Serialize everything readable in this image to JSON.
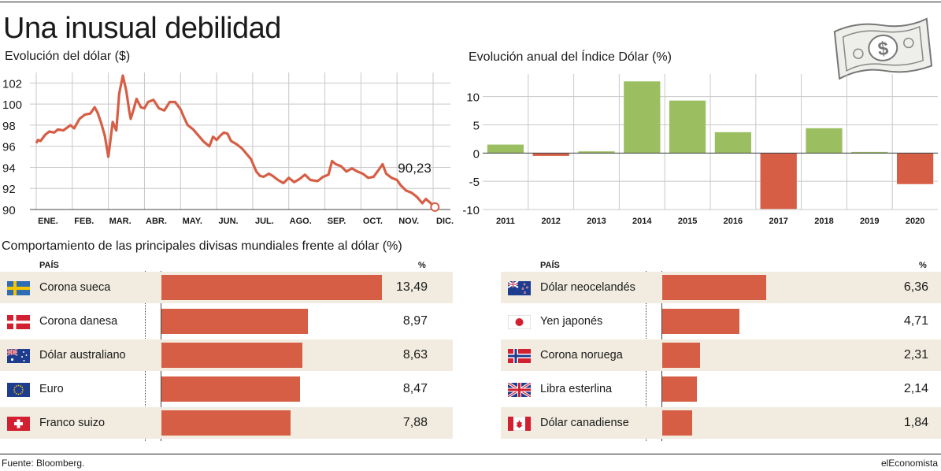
{
  "title": "Una inusual debilidad",
  "source": "Fuente: Bloomberg.",
  "brand": "elEconomista",
  "icons": {
    "money": "dollar-bill-icon"
  },
  "colors": {
    "line": "#d65e45",
    "negative": "#d65e45",
    "positive": "#9bbf60",
    "shade": "#f1ecdf"
  },
  "chart_data": [
    {
      "type": "line",
      "title": "Evolución del dólar ($)",
      "x_labels": [
        "ENE.",
        "FEB.",
        "MAR.",
        "ABR.",
        "MAY.",
        "JUN.",
        "JUL.",
        "AGO.",
        "SEP.",
        "OCT.",
        "NOV.",
        "DIC."
      ],
      "y_ticks": [
        90,
        92,
        94,
        96,
        98,
        100,
        102
      ],
      "ylim": [
        90,
        103
      ],
      "annotation": "90,23",
      "x": [
        0,
        0.05,
        0.12,
        0.25,
        0.36,
        0.5,
        0.6,
        0.75,
        0.95,
        1.05,
        1.2,
        1.35,
        1.5,
        1.62,
        1.7,
        1.8,
        1.9,
        2.0,
        2.12,
        2.22,
        2.3,
        2.4,
        2.5,
        2.58,
        2.62,
        2.7,
        2.78,
        2.9,
        3.0,
        3.1,
        3.25,
        3.4,
        3.55,
        3.7,
        3.85,
        4.0,
        4.1,
        4.2,
        4.35,
        4.5,
        4.65,
        4.8,
        4.9,
        5.0,
        5.1,
        5.2,
        5.3,
        5.4,
        5.55,
        5.7,
        5.8,
        5.95,
        6.1,
        6.2,
        6.3,
        6.45,
        6.55,
        6.7,
        6.85,
        7.0,
        7.15,
        7.3,
        7.45,
        7.6,
        7.8,
        7.95,
        8.1,
        8.2,
        8.3,
        8.45,
        8.6,
        8.75,
        8.9,
        9.05,
        9.2,
        9.35,
        9.5,
        9.6,
        9.7,
        9.85,
        10.0,
        10.1,
        10.25,
        10.4,
        10.55,
        10.7,
        10.8,
        10.9,
        11.0,
        11.05
      ],
      "values": [
        96.3,
        96.6,
        96.5,
        97.1,
        97.4,
        97.3,
        97.6,
        97.5,
        98.0,
        97.7,
        98.6,
        99.0,
        99.1,
        99.7,
        99.2,
        98.2,
        97.0,
        95.0,
        98.3,
        97.5,
        101.0,
        102.7,
        101.2,
        99.3,
        98.6,
        99.5,
        100.5,
        99.7,
        99.6,
        100.2,
        100.4,
        99.6,
        99.4,
        100.2,
        100.2,
        99.5,
        98.7,
        98.0,
        97.6,
        97.0,
        96.4,
        96.0,
        96.9,
        96.6,
        97.0,
        97.3,
        97.2,
        96.5,
        96.2,
        95.8,
        95.4,
        94.8,
        93.6,
        93.2,
        93.1,
        93.4,
        93.2,
        92.8,
        92.5,
        93.0,
        92.6,
        92.9,
        93.3,
        92.8,
        92.7,
        93.1,
        93.3,
        94.6,
        94.3,
        94.1,
        93.6,
        93.9,
        93.6,
        93.4,
        93.0,
        93.1,
        93.8,
        94.3,
        93.4,
        93.0,
        92.8,
        92.3,
        91.8,
        91.6,
        91.2,
        90.6,
        91.0,
        90.7,
        90.4,
        90.23
      ]
    },
    {
      "type": "bar",
      "title": "Evolución anual del Índice Dólar (%)",
      "categories": [
        "2011",
        "2012",
        "2013",
        "2014",
        "2015",
        "2016",
        "2017",
        "2018",
        "2019",
        "2020"
      ],
      "values": [
        1.5,
        -0.5,
        0.3,
        12.7,
        9.3,
        3.7,
        -9.9,
        4.4,
        0.2,
        -5.5
      ],
      "y_ticks": [
        10,
        5,
        0,
        -5,
        -10
      ],
      "ylim": [
        -10,
        14
      ]
    },
    {
      "type": "bar",
      "title": "Comportamiento de las principales divisas mundiales frente al dólar (%)",
      "column_country": "PAÍS",
      "column_pct": "%",
      "left": [
        {
          "name": "Corona sueca",
          "value": 13.49,
          "label": "13,49",
          "flag": "sweden"
        },
        {
          "name": "Corona danesa",
          "value": 8.97,
          "label": "8,97",
          "flag": "denmark"
        },
        {
          "name": "Dólar australiano",
          "value": 8.63,
          "label": "8,63",
          "flag": "australia"
        },
        {
          "name": "Euro",
          "value": 8.47,
          "label": "8,47",
          "flag": "eu"
        },
        {
          "name": "Franco suizo",
          "value": 7.88,
          "label": "7,88",
          "flag": "switzerland"
        }
      ],
      "right": [
        {
          "name": "Dólar neocelandés",
          "value": 6.36,
          "label": "6,36",
          "flag": "newzealand"
        },
        {
          "name": "Yen japonés",
          "value": 4.71,
          "label": "4,71",
          "flag": "japan"
        },
        {
          "name": "Corona noruega",
          "value": 2.31,
          "label": "2,31",
          "flag": "norway"
        },
        {
          "name": "Libra esterlina",
          "value": 2.14,
          "label": "2,14",
          "flag": "uk"
        },
        {
          "name": "Dólar canadiense",
          "value": 1.84,
          "label": "1,84",
          "flag": "canada"
        }
      ]
    }
  ]
}
